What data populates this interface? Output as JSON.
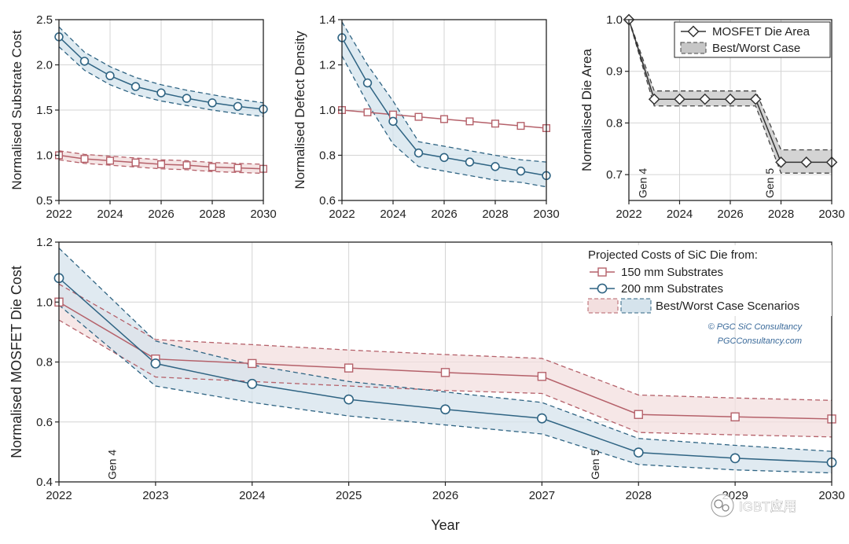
{
  "chart_data": [
    {
      "type": "line",
      "id": "substrate",
      "ylabel": "Normalised Substrate Cost",
      "xlabel": "",
      "xlim": [
        2022,
        2030
      ],
      "ylim": [
        0.5,
        2.5
      ],
      "xticks": [
        2022,
        2024,
        2026,
        2028,
        2030
      ],
      "yticks": [
        0.5,
        1.0,
        1.5,
        2.0,
        2.5
      ],
      "xtick_labels": [
        "2022",
        "2024",
        "2026",
        "2028",
        "2030"
      ],
      "ytick_labels": [
        "0.5",
        "1.0",
        "1.5",
        "2.0",
        "2.5"
      ],
      "grid": true,
      "series": [
        {
          "key": "150mm",
          "marker": "square",
          "color": "#b5616a",
          "band_color": "#f1dcdc",
          "x": [
            2022,
            2023,
            2024,
            2025,
            2026,
            2027,
            2028,
            2029,
            2030
          ],
          "y": [
            1.0,
            0.96,
            0.94,
            0.92,
            0.9,
            0.89,
            0.87,
            0.86,
            0.85
          ],
          "upper": [
            1.05,
            1.01,
            0.99,
            0.97,
            0.95,
            0.94,
            0.92,
            0.91,
            0.9
          ],
          "lower": [
            0.95,
            0.91,
            0.89,
            0.87,
            0.85,
            0.84,
            0.82,
            0.81,
            0.8
          ]
        },
        {
          "key": "200mm",
          "marker": "circle",
          "color": "#2f6483",
          "band_color": "#d3e3ec",
          "x": [
            2022,
            2023,
            2024,
            2025,
            2026,
            2027,
            2028,
            2029,
            2030
          ],
          "y": [
            2.31,
            2.04,
            1.88,
            1.76,
            1.69,
            1.63,
            1.58,
            1.54,
            1.51
          ],
          "upper": [
            2.42,
            2.14,
            1.98,
            1.86,
            1.78,
            1.72,
            1.67,
            1.62,
            1.58
          ],
          "lower": [
            2.2,
            1.94,
            1.78,
            1.67,
            1.6,
            1.55,
            1.5,
            1.46,
            1.43
          ]
        }
      ]
    },
    {
      "type": "line",
      "id": "defect",
      "ylabel": "Normalised Defect Density",
      "xlabel": "",
      "xlim": [
        2022,
        2030
      ],
      "ylim": [
        0.6,
        1.4
      ],
      "xticks": [
        2022,
        2024,
        2026,
        2028,
        2030
      ],
      "yticks": [
        0.6,
        0.8,
        1.0,
        1.2,
        1.4
      ],
      "xtick_labels": [
        "2022",
        "2024",
        "2026",
        "2028",
        "2030"
      ],
      "ytick_labels": [
        "0.6",
        "0.8",
        "1.0",
        "1.2",
        "1.4"
      ],
      "grid": true,
      "series": [
        {
          "key": "150mm",
          "marker": "square",
          "color": "#b5616a",
          "band_color": null,
          "x": [
            2022,
            2023,
            2024,
            2025,
            2026,
            2027,
            2028,
            2029,
            2030
          ],
          "y": [
            1.0,
            0.99,
            0.98,
            0.97,
            0.96,
            0.95,
            0.94,
            0.93,
            0.92
          ]
        },
        {
          "key": "200mm",
          "marker": "circle",
          "color": "#2f6483",
          "band_color": "#d3e3ec",
          "x": [
            2022,
            2023,
            2024,
            2025,
            2026,
            2027,
            2028,
            2029,
            2030
          ],
          "y": [
            1.32,
            1.12,
            0.95,
            0.81,
            0.79,
            0.77,
            0.75,
            0.73,
            0.71
          ],
          "upper": [
            1.39,
            1.2,
            1.04,
            0.86,
            0.84,
            0.82,
            0.8,
            0.78,
            0.77
          ],
          "lower": [
            1.24,
            1.03,
            0.85,
            0.75,
            0.73,
            0.71,
            0.69,
            0.68,
            0.66
          ]
        }
      ]
    },
    {
      "type": "line",
      "id": "diearea",
      "ylabel": "Normalised Die Area",
      "xlabel": "",
      "xlim": [
        2022,
        2030
      ],
      "ylim": [
        0.65,
        1.0
      ],
      "xticks": [
        2022,
        2024,
        2026,
        2028,
        2030
      ],
      "yticks": [
        0.7,
        0.8,
        0.9,
        1.0
      ],
      "xtick_labels": [
        "2022",
        "2024",
        "2026",
        "2028",
        "2030"
      ],
      "ytick_labels": [
        "0.7",
        "0.8",
        "0.9",
        "1.0"
      ],
      "grid": true,
      "gen_markers": [
        {
          "x": 2022.55,
          "label": "Gen 4"
        },
        {
          "x": 2027.55,
          "label": "Gen 5"
        }
      ],
      "legend": {
        "position": "top-right",
        "items": [
          {
            "label": "MOSFET Die Area",
            "kind": "diamond-line"
          },
          {
            "label": "Best/Worst Case",
            "kind": "band"
          }
        ]
      },
      "series": [
        {
          "key": "die",
          "marker": "diamond",
          "color": "#333333",
          "band_color": "#c6c6c6",
          "x": [
            2022,
            2023,
            2024,
            2025,
            2026,
            2027,
            2028,
            2029,
            2030
          ],
          "y": [
            1.0,
            0.846,
            0.846,
            0.846,
            0.846,
            0.846,
            0.724,
            0.724,
            0.724
          ],
          "upper": [
            1.0,
            0.862,
            0.862,
            0.862,
            0.862,
            0.862,
            0.748,
            0.748,
            0.748
          ],
          "lower": [
            1.0,
            0.833,
            0.833,
            0.833,
            0.833,
            0.833,
            0.703,
            0.703,
            0.703
          ]
        }
      ]
    },
    {
      "type": "line",
      "id": "diecost",
      "ylabel": "Normalised MOSFET Die Cost",
      "xlabel": "Year",
      "xlim": [
        2022,
        2030
      ],
      "ylim": [
        0.4,
        1.2
      ],
      "xticks": [
        2022,
        2023,
        2024,
        2025,
        2026,
        2027,
        2028,
        2029,
        2030
      ],
      "yticks": [
        0.4,
        0.6,
        0.8,
        1.0,
        1.2
      ],
      "xtick_labels": [
        "2022",
        "2023",
        "2024",
        "2025",
        "2026",
        "2027",
        "2028",
        "2029",
        "2030"
      ],
      "ytick_labels": [
        "0.4",
        "0.6",
        "0.8",
        "1.0",
        "1.2"
      ],
      "grid": true,
      "gen_markers": [
        {
          "x": 2022.55,
          "label": "Gen 4"
        },
        {
          "x": 2027.55,
          "label": "Gen 5"
        }
      ],
      "legend": {
        "position": "top-right",
        "title": "Projected Costs of SiC Die from:",
        "items": [
          {
            "label": "150 mm Substrates",
            "kind": "square-line"
          },
          {
            "label": "200 mm Substrates",
            "kind": "circle-line"
          },
          {
            "label": "Best/Worst Case Scenarios",
            "kind": "double-band"
          }
        ]
      },
      "annotations": [
        "© PGC SiC Consultancy",
        "PGCConsultancy.com"
      ],
      "series": [
        {
          "key": "150mm",
          "marker": "square",
          "color": "#b5616a",
          "band_color": "#f3dfdf",
          "x": [
            2022,
            2023,
            2024,
            2025,
            2026,
            2027,
            2028,
            2029,
            2030
          ],
          "y": [
            1.0,
            0.81,
            0.795,
            0.78,
            0.765,
            0.752,
            0.625,
            0.617,
            0.61
          ],
          "upper": [
            1.06,
            0.875,
            0.858,
            0.84,
            0.825,
            0.812,
            0.69,
            0.68,
            0.672
          ],
          "lower": [
            0.94,
            0.75,
            0.735,
            0.72,
            0.705,
            0.695,
            0.565,
            0.557,
            0.55
          ]
        },
        {
          "key": "200mm",
          "marker": "circle",
          "color": "#2f6483",
          "band_color": "#d5e3ec",
          "x": [
            2022,
            2023,
            2024,
            2025,
            2026,
            2027,
            2028,
            2029,
            2030
          ],
          "y": [
            1.08,
            0.795,
            0.727,
            0.675,
            0.642,
            0.612,
            0.498,
            0.479,
            0.465
          ],
          "upper": [
            1.18,
            0.87,
            0.79,
            0.735,
            0.7,
            0.665,
            0.545,
            0.522,
            0.502
          ],
          "lower": [
            0.99,
            0.72,
            0.665,
            0.62,
            0.59,
            0.56,
            0.458,
            0.44,
            0.43
          ]
        }
      ]
    }
  ],
  "watermark": {
    "label": "IGBT应用"
  }
}
